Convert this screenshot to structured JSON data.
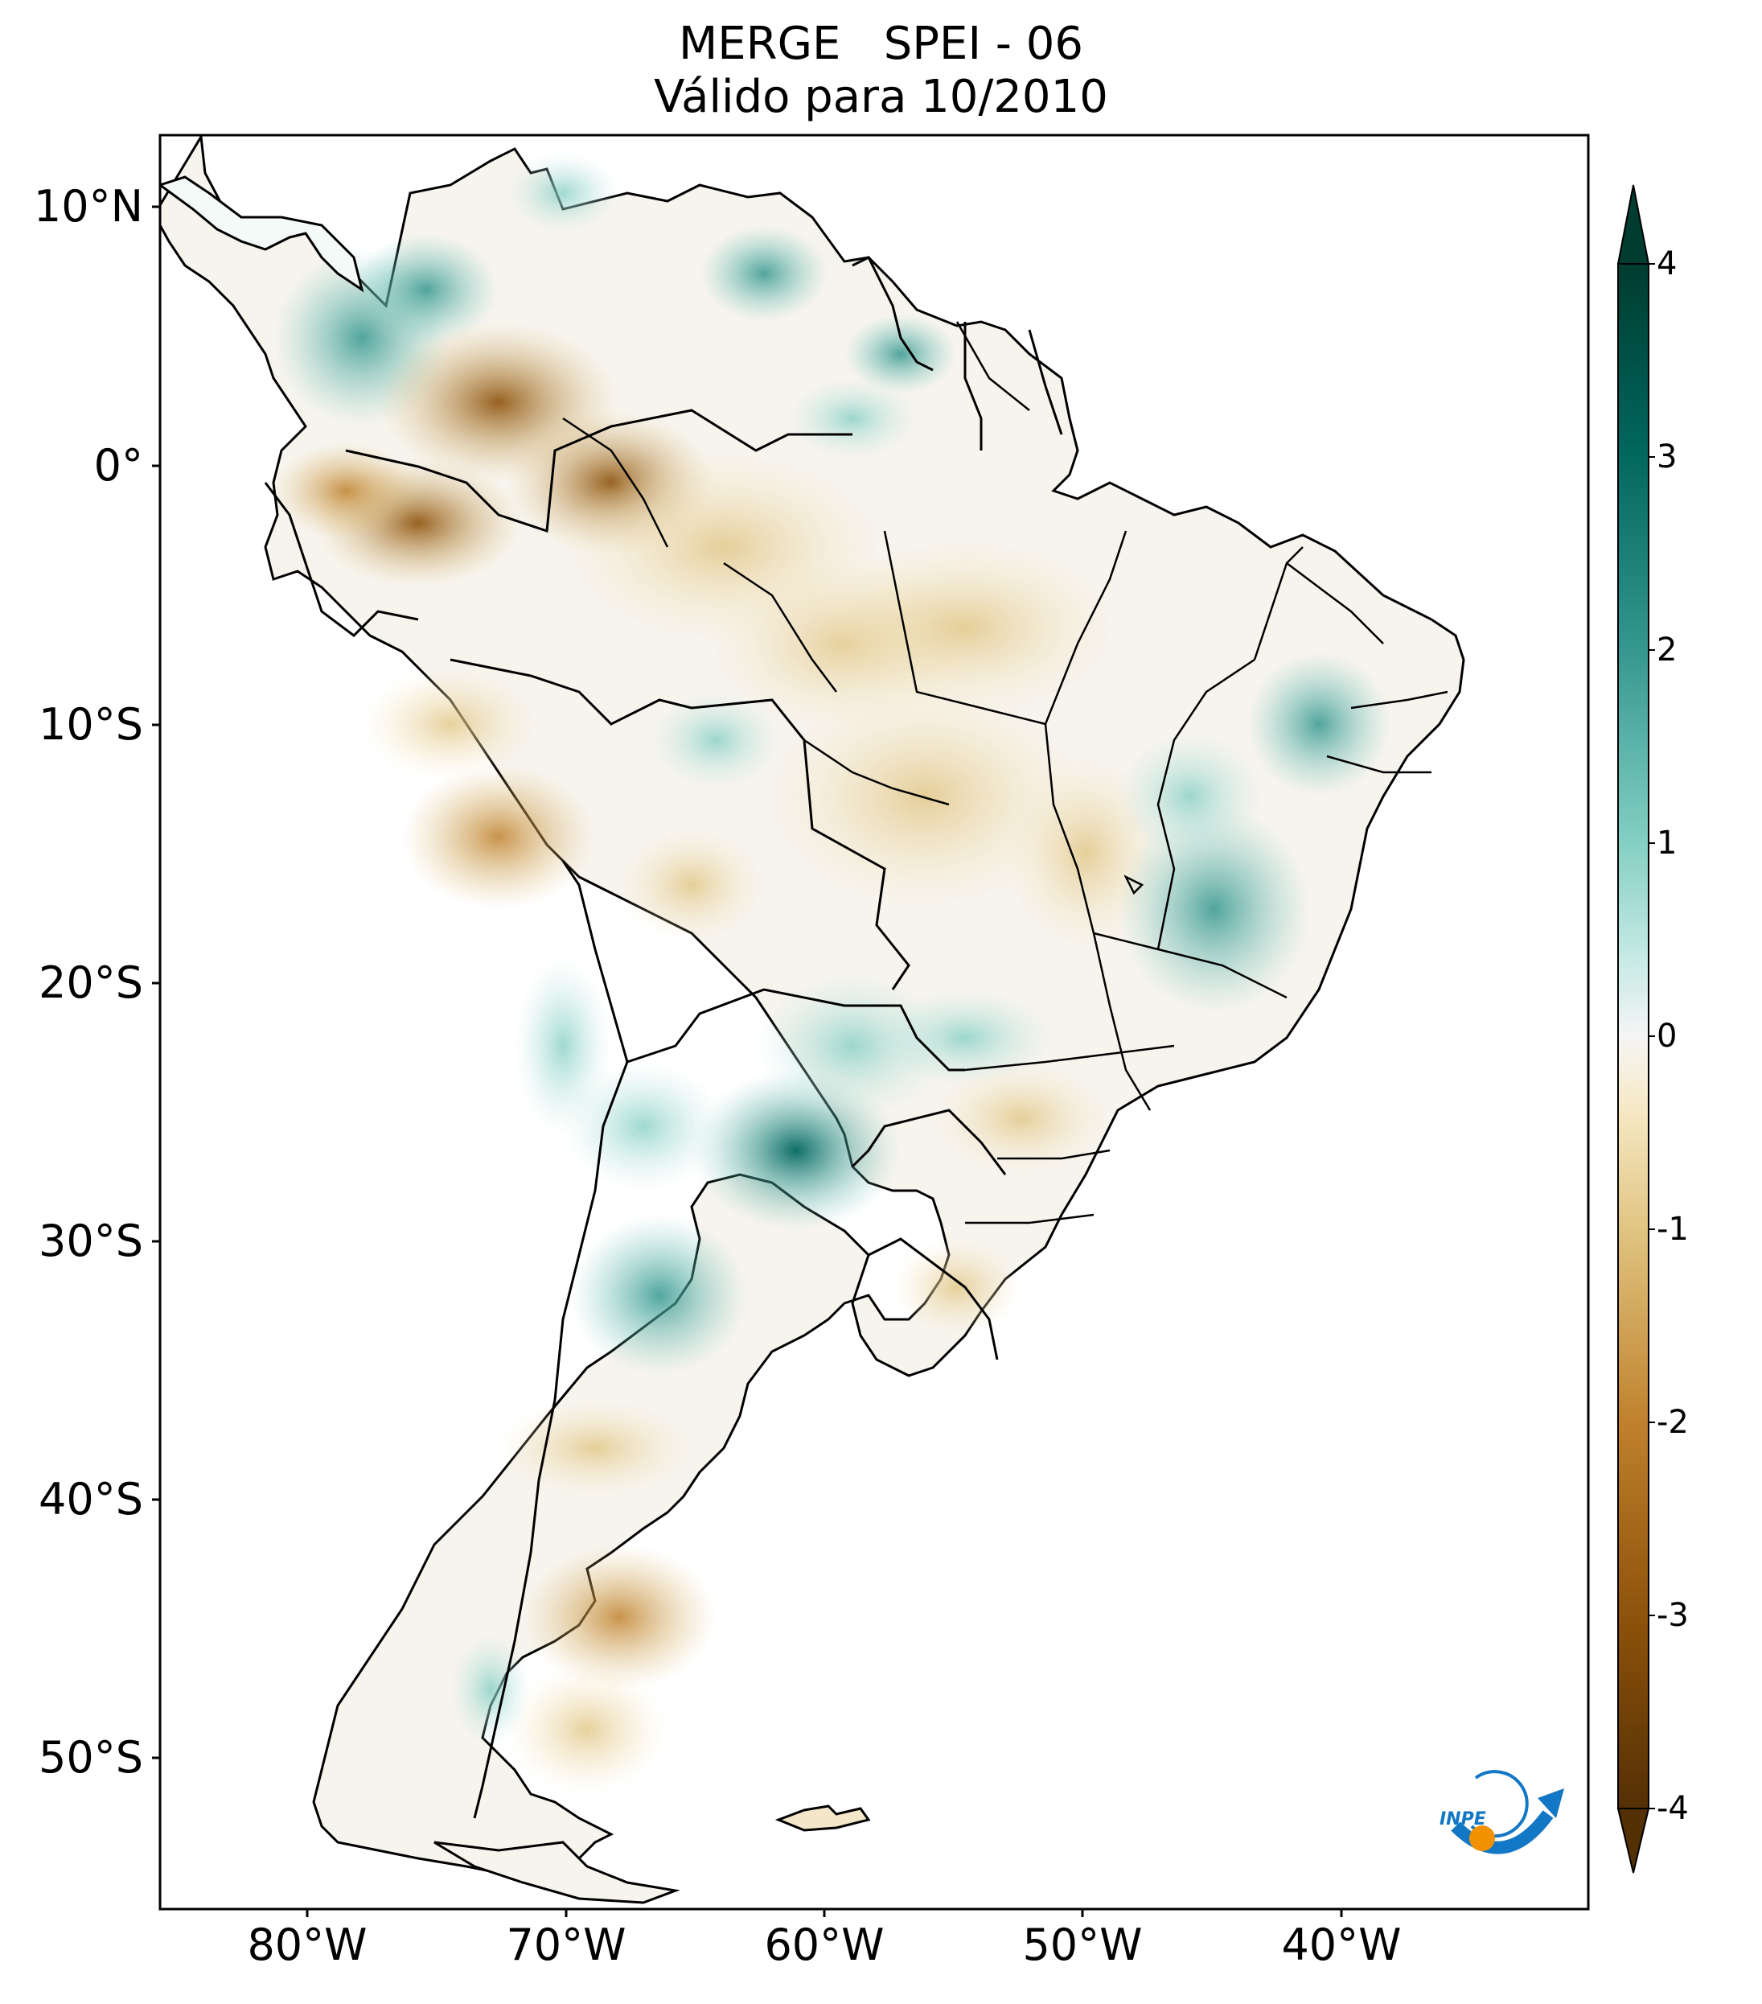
{
  "title": {
    "line1": "MERGE   SPEI - 06",
    "line2": "Válido para 10/2010"
  },
  "axes": {
    "lat_labels": [
      "10°N",
      "0°",
      "10°S",
      "20°S",
      "30°S",
      "40°S",
      "50°S"
    ],
    "lon_labels": [
      "80°W",
      "70°W",
      "60°W",
      "50°W",
      "40°W"
    ]
  },
  "colorbar": {
    "ticks": [
      "4",
      "3",
      "2",
      "1",
      "0",
      "-1",
      "-2",
      "-3",
      "-4"
    ],
    "range": [
      -4,
      4
    ],
    "extend": "both",
    "colors": {
      "dry_extreme": "#543005",
      "dry_strong": "#8c510a",
      "dry_moderate": "#bf812d",
      "dry_light": "#dfc27d",
      "dry_faint": "#f6e8c3",
      "neutral": "#f5f5f5",
      "wet_faint": "#c7eae5",
      "wet_light": "#80cdc1",
      "wet_moderate": "#35978f",
      "wet_strong": "#01665e",
      "wet_extreme": "#003c30"
    }
  },
  "logo": {
    "text": "INPE",
    "colors": {
      "blue": "#1277c4",
      "orange": "#f39200"
    }
  }
}
